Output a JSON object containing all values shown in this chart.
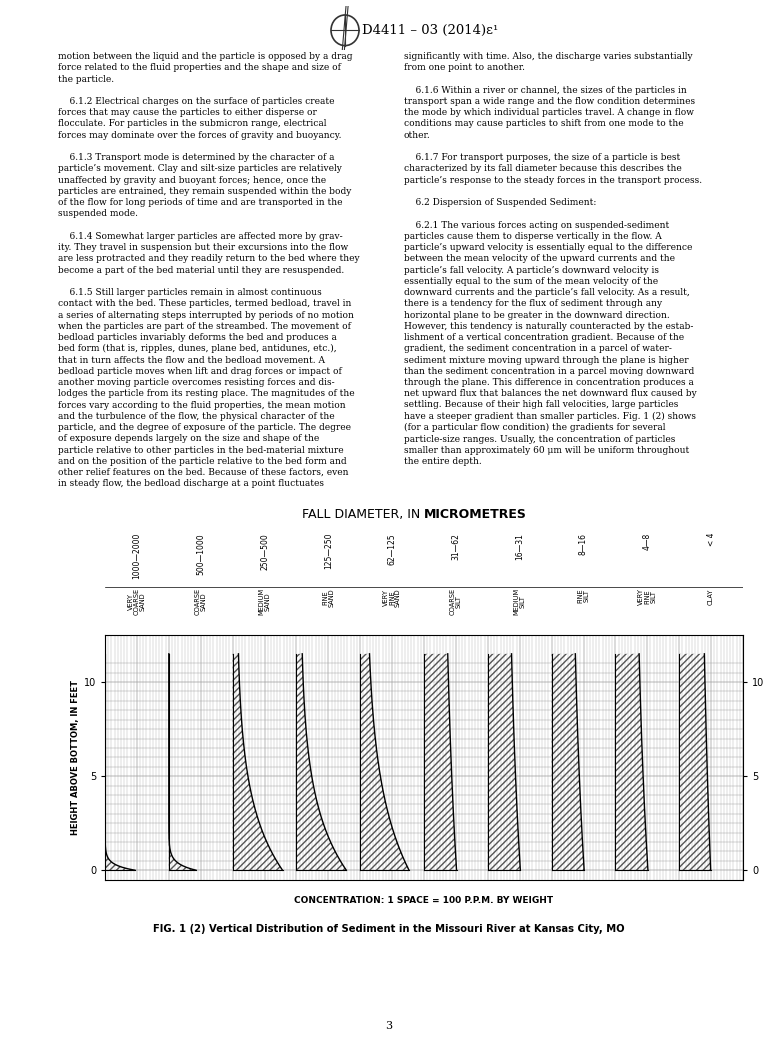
{
  "page_bg": "#ffffff",
  "header_text": "D4411 – 03 (2014)ε¹",
  "page_number": "3",
  "body_text_left": [
    "motion between the liquid and the particle is opposed by a drag",
    "force related to the fluid properties and the shape and size of",
    "the particle.",
    "",
    "    6.1.2 Electrical charges on the surface of particles create",
    "forces that may cause the particles to either disperse or",
    "flocculate. For particles in the submicron range, electrical",
    "forces may dominate over the forces of gravity and buoyancy.",
    "",
    "    6.1.3 Transport mode is determined by the character of a",
    "particle’s movement. Clay and silt-size particles are relatively",
    "unaffected by gravity and buoyant forces; hence, once the",
    "particles are entrained, they remain suspended within the body",
    "of the flow for long periods of time and are transported in the",
    "suspended mode.",
    "",
    "    6.1.4 Somewhat larger particles are affected more by grav-",
    "ity. They travel in suspension but their excursions into the flow",
    "are less protracted and they readily return to the bed where they",
    "become a part of the bed material until they are resuspended.",
    "",
    "    6.1.5 Still larger particles remain in almost continuous",
    "contact with the bed. These particles, termed bedload, travel in",
    "a series of alternating steps interrupted by periods of no motion",
    "when the particles are part of the streambed. The movement of",
    "bedload particles invariably deforms the bed and produces a",
    "bed form (that is, ripples, dunes, plane bed, antidunes, etc.),",
    "that in turn affects the flow and the bedload movement. A",
    "bedload particle moves when lift and drag forces or impact of",
    "another moving particle overcomes resisting forces and dis-",
    "lodges the particle from its resting place. The magnitudes of the",
    "forces vary according to the fluid properties, the mean motion",
    "and the turbulence of the flow, the physical character of the",
    "particle, and the degree of exposure of the particle. The degree",
    "of exposure depends largely on the size and shape of the",
    "particle relative to other particles in the bed-material mixture",
    "and on the position of the particle relative to the bed form and",
    "other relief features on the bed. Because of these factors, even",
    "in steady flow, the bedload discharge at a point fluctuates"
  ],
  "body_text_right": [
    "significantly with time. Also, the discharge varies substantially",
    "from one point to another.",
    "",
    "    6.1.6 Within a river or channel, the sizes of the particles in",
    "transport span a wide range and the flow condition determines",
    "the mode by which individual particles travel. A change in flow",
    "conditions may cause particles to shift from one mode to the",
    "other.",
    "",
    "    6.1.7 For transport purposes, the size of a particle is best",
    "characterized by its fall diameter because this describes the",
    "particle’s response to the steady forces in the transport process.",
    "",
    "    6.2 Dispersion of Suspended Sediment:",
    "",
    "    6.2.1 The various forces acting on suspended-sediment",
    "particles cause them to disperse vertically in the flow. A",
    "particle’s upward velocity is essentially equal to the difference",
    "between the mean velocity of the upward currents and the",
    "particle’s fall velocity. A particle’s downward velocity is",
    "essentially equal to the sum of the mean velocity of the",
    "downward currents and the particle’s fall velocity. As a result,",
    "there is a tendency for the flux of sediment through any",
    "horizontal plane to be greater in the downward direction.",
    "However, this tendency is naturally counteracted by the estab-",
    "lishment of a vertical concentration gradient. Because of the",
    "gradient, the sediment concentration in a parcel of water-",
    "sediment mixture moving upward through the plane is higher",
    "than the sediment concentration in a parcel moving downward",
    "through the plane. This difference in concentration produces a",
    "net upward flux that balances the net downward flux caused by",
    "settling. Because of their high fall velocities, large particles",
    "have a steeper gradient than smaller particles. Fig. 1 (2) shows",
    "(for a particular flow condition) the gradients for several",
    "particle-size ranges. Usually, the concentration of particles",
    "smaller than approximately 60 μm will be uniform throughout",
    "the entire depth."
  ],
  "chart_title_normal": "FALL DIAMETER, IN ",
  "chart_title_bold": "MICROMETRES",
  "chart_xlabel": "CONCENTRATION: 1 SPACE = 100 P.P.M. BY WEIGHT",
  "chart_ylabel": "HEIGHT ABOVE BOTTOM, IN FEET",
  "chart_caption_bold": "FIG. 1 (2)",
  "chart_caption_normal": " Vertical Distribution of Sediment in the Missouri River at Kansas City, MO",
  "size_ranges": [
    "1000—2000",
    "500—1000",
    "250—500",
    "125—250",
    "62—125",
    "31—62",
    "16—31",
    "8—16",
    "4—8",
    "< 4"
  ],
  "size_labels": [
    "VERY\nCOARSE\nSAND",
    "COARSE\nSAND",
    "MEDIUM\nSAND",
    "FINE\nSAND",
    "VERY\nFINE\nSAND",
    "COARSE\nSILT",
    "MEDIUM\nSILT",
    "FINE\nSILT",
    "VERY\nFINE\nSILT",
    "CLAY"
  ],
  "grid_color": "#999999",
  "hatch_color": "#444444",
  "chart_bg": "#ffffff",
  "shapes": [
    "steep1",
    "steep2",
    "curved_large",
    "curved_large",
    "curved_mild",
    "nearly_straight",
    "nearly_straight",
    "nearly_straight",
    "nearly_straight",
    "slight_curve"
  ]
}
